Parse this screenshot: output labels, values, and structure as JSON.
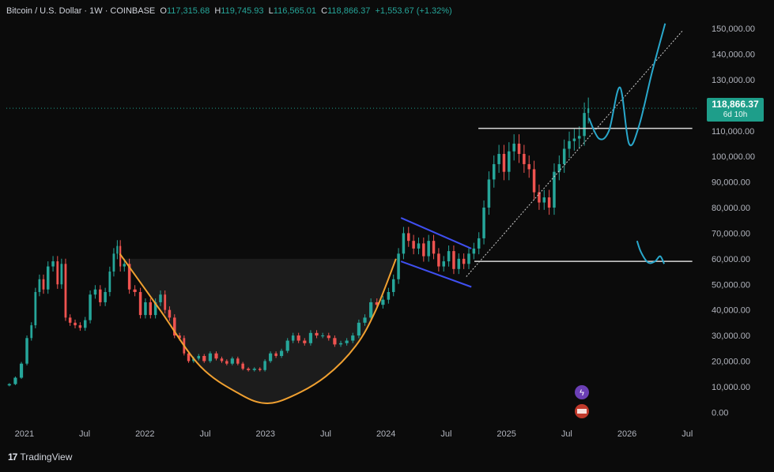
{
  "legend": {
    "symbol": "Bitcoin / U.S. Dollar · 1W · COINBASE",
    "open_label": "O",
    "open": "117,315.68",
    "high_label": "H",
    "high": "119,745.93",
    "low_label": "L",
    "low": "116,565.01",
    "close_label": "C",
    "close": "118,866.37",
    "change": "+1,553.67 (+1.32%)"
  },
  "price_tag": {
    "price": "118,866.37",
    "countdown": "6d 10h"
  },
  "brand": {
    "name": "TradingView",
    "logo_glyph": "17"
  },
  "colors": {
    "background": "#0b0b0b",
    "up": "#26a69a",
    "down": "#ef5350",
    "price_line": "#1e9e8a",
    "cup_curve": "#f0a030",
    "channel": "#3f4ff0",
    "projection": "#29a8cc",
    "level_line": "#d8d8d8"
  },
  "chart_data": {
    "type": "candlestick",
    "title": "Bitcoin / U.S. Dollar · 1W · COINBASE",
    "ylim": [
      -3000,
      155000
    ],
    "y_ticks": [
      0,
      10000,
      20000,
      30000,
      40000,
      50000,
      60000,
      70000,
      80000,
      90000,
      100000,
      110000,
      120000,
      130000,
      140000,
      150000
    ],
    "y_tick_labels": [
      "0.00",
      "10,000.00",
      "20,000.00",
      "30,000.00",
      "40,000.00",
      "50,000.00",
      "60,000.00",
      "70,000.00",
      "80,000.00",
      "90,000.00",
      "100,000.00",
      "110,000.00",
      "120,000.00",
      "130,000.00",
      "140,000.00",
      "150,000.00"
    ],
    "x_tick_labels": [
      "2021",
      "Jul",
      "2022",
      "Jul",
      "2023",
      "Jul",
      "2024",
      "Jul",
      "2025",
      "Jul",
      "2026",
      "Jul"
    ],
    "x_tick_months": [
      0,
      6,
      12,
      18,
      24,
      30,
      36,
      42,
      48,
      54,
      60,
      66
    ],
    "xlim_months": [
      -1.8,
      67
    ],
    "price_series": [
      [
        -1.8,
        10500
      ],
      [
        -1.2,
        11000
      ],
      [
        -0.6,
        13500
      ],
      [
        0,
        19000
      ],
      [
        0.5,
        29000
      ],
      [
        0.9,
        34000
      ],
      [
        1.3,
        47000
      ],
      [
        1.7,
        52000
      ],
      [
        2.1,
        48000
      ],
      [
        2.6,
        57000
      ],
      [
        3.1,
        59000
      ],
      [
        3.5,
        50000
      ],
      [
        3.9,
        58000
      ],
      [
        4.3,
        37000
      ],
      [
        4.8,
        35000
      ],
      [
        5.3,
        34000
      ],
      [
        5.8,
        33000
      ],
      [
        6.3,
        36000
      ],
      [
        6.8,
        46000
      ],
      [
        7.3,
        48000
      ],
      [
        7.8,
        43000
      ],
      [
        8.3,
        47000
      ],
      [
        8.7,
        55000
      ],
      [
        9.1,
        62000
      ],
      [
        9.4,
        65000
      ],
      [
        9.7,
        57000
      ],
      [
        10.2,
        58000
      ],
      [
        10.7,
        48000
      ],
      [
        11.3,
        47000
      ],
      [
        11.8,
        38000
      ],
      [
        12.3,
        43000
      ],
      [
        12.8,
        38000
      ],
      [
        13.3,
        43000
      ],
      [
        13.8,
        46000
      ],
      [
        14.2,
        40000
      ],
      [
        14.7,
        37000
      ],
      [
        15.2,
        30000
      ],
      [
        15.7,
        29000
      ],
      [
        16.1,
        23000
      ],
      [
        16.6,
        20000
      ],
      [
        17.1,
        21000
      ],
      [
        17.6,
        22000
      ],
      [
        18.2,
        20000
      ],
      [
        18.8,
        23000
      ],
      [
        19.4,
        21000
      ],
      [
        19.9,
        20000
      ],
      [
        20.4,
        19000
      ],
      [
        21.0,
        21000
      ],
      [
        21.5,
        19000
      ],
      [
        22.0,
        17000
      ],
      [
        22.6,
        16500
      ],
      [
        23.2,
        17000
      ],
      [
        23.7,
        16500
      ],
      [
        24.2,
        20000
      ],
      [
        24.8,
        23000
      ],
      [
        25.3,
        22000
      ],
      [
        25.9,
        24000
      ],
      [
        26.5,
        28000
      ],
      [
        27.0,
        30000
      ],
      [
        27.6,
        28000
      ],
      [
        28.2,
        27000
      ],
      [
        28.8,
        31000
      ],
      [
        29.4,
        30000
      ],
      [
        30.0,
        30000
      ],
      [
        30.6,
        29000
      ],
      [
        31.2,
        26500
      ],
      [
        31.8,
        27000
      ],
      [
        32.4,
        28000
      ],
      [
        33.0,
        30000
      ],
      [
        33.6,
        35000
      ],
      [
        34.2,
        37000
      ],
      [
        34.8,
        43000
      ],
      [
        35.4,
        42000
      ],
      [
        36.0,
        44000
      ],
      [
        36.5,
        47000
      ],
      [
        37.0,
        52000
      ],
      [
        37.5,
        62000
      ],
      [
        38.0,
        70000
      ],
      [
        38.5,
        67000
      ],
      [
        39.0,
        64000
      ],
      [
        39.5,
        66000
      ],
      [
        40.0,
        61000
      ],
      [
        40.5,
        67000
      ],
      [
        41.0,
        62000
      ],
      [
        41.5,
        57000
      ],
      [
        42.0,
        59000
      ],
      [
        42.5,
        63000
      ],
      [
        43.0,
        56000
      ],
      [
        43.5,
        60000
      ],
      [
        44.0,
        58000
      ],
      [
        44.5,
        62000
      ],
      [
        45.0,
        64000
      ],
      [
        45.5,
        68000
      ],
      [
        46.0,
        80000
      ],
      [
        46.5,
        91000
      ],
      [
        47.0,
        97000
      ],
      [
        47.5,
        101000
      ],
      [
        48.0,
        94000
      ],
      [
        48.5,
        102000
      ],
      [
        49.0,
        105000
      ],
      [
        49.5,
        101000
      ],
      [
        50.0,
        97000
      ],
      [
        50.5,
        95000
      ],
      [
        51.0,
        86000
      ],
      [
        51.5,
        82000
      ],
      [
        52.0,
        84000
      ],
      [
        52.5,
        80000
      ],
      [
        53.0,
        94000
      ],
      [
        53.5,
        97000
      ],
      [
        54.0,
        103000
      ],
      [
        54.5,
        106000
      ],
      [
        55.0,
        107000
      ],
      [
        55.5,
        108000
      ],
      [
        56.0,
        117000
      ],
      [
        56.3,
        118866
      ]
    ],
    "annotations": {
      "current_price_line": 118866.37,
      "resistance_line": {
        "y": 111000,
        "x_months": [
          45.2,
          66.5
        ]
      },
      "support_line": {
        "y": 59000,
        "x_months": [
          44.8,
          66.5
        ]
      },
      "cup_curve": [
        [
          9.5,
          62000
        ],
        [
          13.5,
          40000
        ],
        [
          17.5,
          18000
        ],
        [
          21.5,
          7000
        ],
        [
          24,
          3500
        ],
        [
          26.5,
          6000
        ],
        [
          30,
          14000
        ],
        [
          33,
          26000
        ],
        [
          35,
          40000
        ],
        [
          37,
          60000
        ]
      ],
      "cup_rim_y": 60000,
      "channel_upper": [
        [
          37.5,
          76000
        ],
        [
          44.5,
          64000
        ]
      ],
      "channel_lower": [
        [
          37.5,
          59000
        ],
        [
          44.5,
          49000
        ]
      ],
      "trend_line": [
        [
          44.0,
          53000
        ],
        [
          65.5,
          149000
        ]
      ],
      "projection_high": [
        [
          56.2,
          115000
        ],
        [
          57.2,
          107000
        ],
        [
          58.2,
          110000
        ],
        [
          59.3,
          127000
        ],
        [
          60.2,
          105000
        ],
        [
          61.2,
          112000
        ],
        [
          62.5,
          133000
        ],
        [
          63.8,
          152000
        ]
      ],
      "projection_low": [
        [
          61.0,
          67000
        ],
        [
          61.4,
          62500
        ],
        [
          62.1,
          58500
        ],
        [
          62.8,
          59000
        ],
        [
          63.3,
          61000
        ],
        [
          63.7,
          58000
        ]
      ]
    },
    "grid": false,
    "legend": "top-left"
  }
}
